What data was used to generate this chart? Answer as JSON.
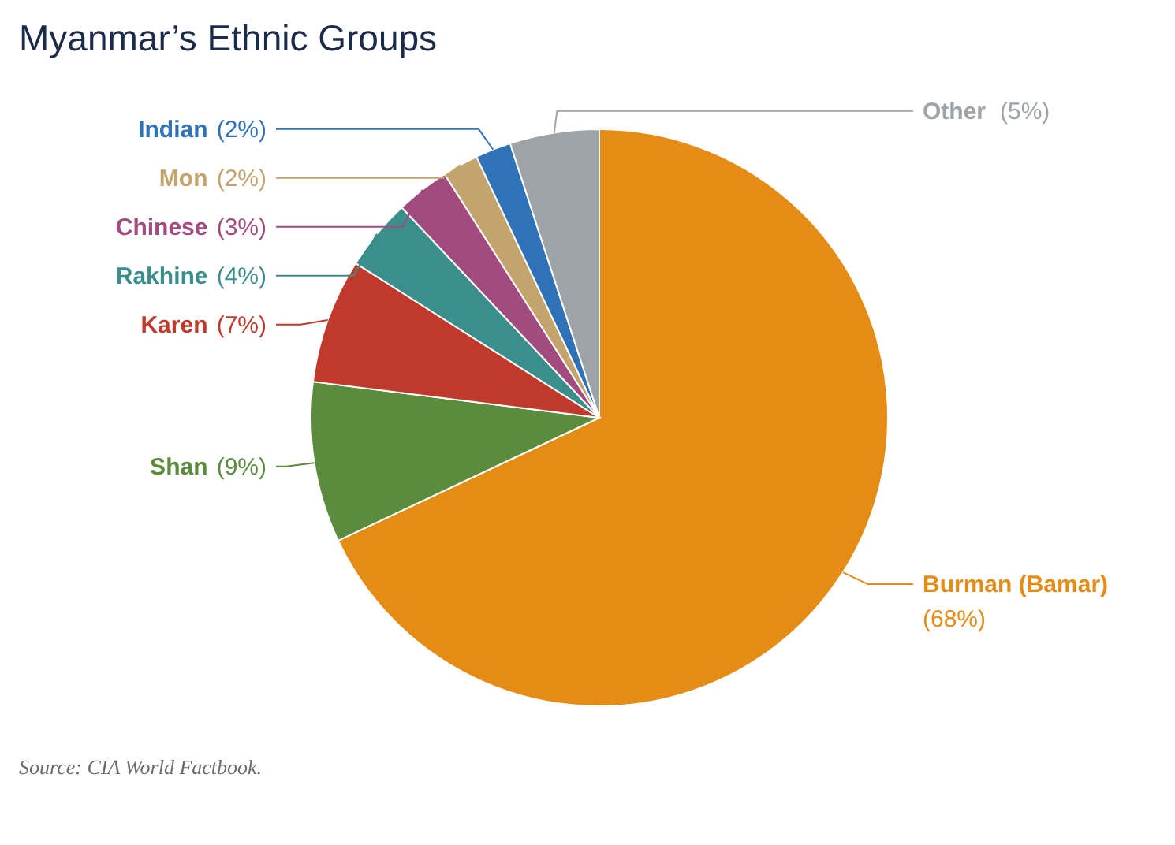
{
  "chart_data": {
    "type": "pie",
    "title": "Myanmar’s Ethnic Groups",
    "categories": [
      "Burman (Bamar)",
      "Shan",
      "Karen",
      "Rakhine",
      "Chinese",
      "Mon",
      "Indian",
      "Other"
    ],
    "values": [
      68,
      9,
      7,
      4,
      3,
      2,
      2,
      5
    ],
    "colors": [
      "#e58c17",
      "#5b8c3e",
      "#c0392b",
      "#3a8f8c",
      "#a24b7e",
      "#c2a46c",
      "#2f72b8",
      "#9ea3a8"
    ],
    "value_labels": [
      "(68%)",
      "(9%)",
      "(7%)",
      "(4%)",
      "(3%)",
      "(2%)",
      "(2%)",
      "(5%)"
    ],
    "annotations": [
      "Source: CIA World Factbook."
    ]
  }
}
